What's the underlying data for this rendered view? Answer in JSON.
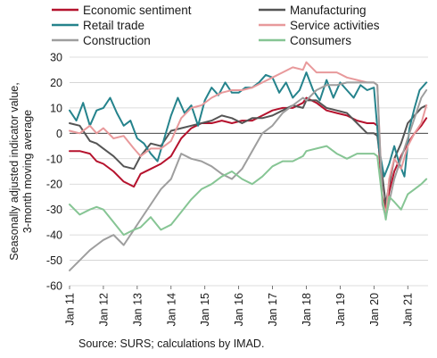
{
  "chart_data": {
    "type": "line",
    "title": "",
    "xlabel": "",
    "ylabel": "Seasonally adjusted indicator value, 3-month moving average",
    "ylabel_lines": [
      "Seasonally adjusted indicator value,",
      "3-month moving average"
    ],
    "ylim": [
      -60,
      30
    ],
    "yticks": [
      -60,
      -50,
      -40,
      -30,
      -20,
      -10,
      0,
      10,
      20,
      30
    ],
    "xlim": [
      2011.0,
      2021.6
    ],
    "xticks": [
      {
        "x": 2011,
        "label": "Jan 11"
      },
      {
        "x": 2012,
        "label": "Jan 12"
      },
      {
        "x": 2013,
        "label": "Jan 13"
      },
      {
        "x": 2014,
        "label": "Jan 14"
      },
      {
        "x": 2015,
        "label": "Jan 15"
      },
      {
        "x": 2016,
        "label": "Jan 16"
      },
      {
        "x": 2017,
        "label": "Jan 17"
      },
      {
        "x": 2018,
        "label": "Jan 18"
      },
      {
        "x": 2019,
        "label": "Jan 19"
      },
      {
        "x": 2020,
        "label": "Jan 20"
      },
      {
        "x": 2021,
        "label": "Jan 21"
      }
    ],
    "grid": "horizontal",
    "legend_position": "top",
    "series": [
      {
        "name": "Economic sentiment",
        "color": "#b5122d",
        "x": [
          2011.0,
          2011.3,
          2011.6,
          2011.8,
          2012.0,
          2012.3,
          2012.6,
          2012.9,
          2013.1,
          2013.4,
          2013.7,
          2014.0,
          2014.3,
          2014.6,
          2014.9,
          2015.2,
          2015.5,
          2015.8,
          2016.1,
          2016.4,
          2016.7,
          2017.0,
          2017.3,
          2017.6,
          2017.9,
          2018.0,
          2018.3,
          2018.6,
          2018.9,
          2019.2,
          2019.5,
          2019.8,
          2020.0,
          2020.1,
          2020.25,
          2020.35,
          2020.45,
          2020.6,
          2020.8,
          2021.0,
          2021.2,
          2021.4,
          2021.55
        ],
        "y": [
          -7,
          -7,
          -8,
          -11,
          -12,
          -15,
          -19,
          -21,
          -16,
          -14,
          -12,
          -9,
          -2,
          2,
          4,
          4,
          5,
          4,
          5,
          5,
          7,
          9,
          10,
          10,
          12,
          14,
          12,
          9,
          8,
          7,
          5,
          4,
          4,
          3,
          -25,
          -30,
          -23,
          -15,
          -9,
          -4,
          0,
          3,
          6
        ]
      },
      {
        "name": "Manufacturing",
        "color": "#555555",
        "x": [
          2011.0,
          2011.3,
          2011.6,
          2011.8,
          2012.0,
          2012.3,
          2012.6,
          2012.9,
          2013.1,
          2013.4,
          2013.7,
          2014.0,
          2014.3,
          2014.6,
          2014.9,
          2015.2,
          2015.5,
          2015.8,
          2016.1,
          2016.4,
          2016.7,
          2017.0,
          2017.3,
          2017.6,
          2017.9,
          2018.0,
          2018.3,
          2018.6,
          2018.9,
          2019.2,
          2019.5,
          2019.8,
          2020.0,
          2020.1,
          2020.25,
          2020.35,
          2020.45,
          2020.6,
          2020.8,
          2021.0,
          2021.2,
          2021.4,
          2021.55
        ],
        "y": [
          4,
          3,
          -3,
          -4,
          -6,
          -9,
          -13,
          -14,
          -9,
          -4,
          -5,
          1,
          2,
          3,
          4,
          5,
          7,
          6,
          4,
          6,
          6,
          7,
          9,
          11,
          10,
          13,
          13,
          10,
          9,
          8,
          4,
          0,
          0,
          -1,
          -17,
          -28,
          -20,
          -10,
          -4,
          4,
          7,
          10,
          11
        ]
      },
      {
        "name": "Retail trade",
        "color": "#25838c",
        "x": [
          2011.0,
          2011.2,
          2011.4,
          2011.6,
          2011.8,
          2012.0,
          2012.2,
          2012.4,
          2012.6,
          2012.8,
          2013.0,
          2013.2,
          2013.4,
          2013.6,
          2013.8,
          2014.0,
          2014.2,
          2014.4,
          2014.6,
          2014.8,
          2015.0,
          2015.2,
          2015.4,
          2015.6,
          2015.8,
          2016.0,
          2016.2,
          2016.4,
          2016.6,
          2016.8,
          2017.0,
          2017.2,
          2017.4,
          2017.6,
          2017.8,
          2018.0,
          2018.2,
          2018.4,
          2018.6,
          2018.8,
          2019.0,
          2019.2,
          2019.4,
          2019.6,
          2019.8,
          2020.0,
          2020.15,
          2020.3,
          2020.45,
          2020.6,
          2020.75,
          2020.9,
          2021.05,
          2021.2,
          2021.35,
          2021.55
        ],
        "y": [
          9,
          5,
          12,
          3,
          9,
          10,
          14,
          8,
          3,
          5,
          -2,
          -4,
          -8,
          -11,
          -2,
          7,
          14,
          8,
          11,
          3,
          13,
          18,
          15,
          20,
          16,
          16,
          18,
          18,
          20,
          23,
          22,
          16,
          20,
          14,
          17,
          24,
          17,
          13,
          21,
          14,
          20,
          17,
          14,
          19,
          17,
          18,
          -6,
          -17,
          -12,
          -5,
          -12,
          -17,
          2,
          10,
          17,
          20
        ]
      },
      {
        "name": "Service activities",
        "color": "#e8999b",
        "x": [
          2011.0,
          2011.3,
          2011.6,
          2011.8,
          2012.0,
          2012.3,
          2012.6,
          2012.9,
          2013.1,
          2013.4,
          2013.7,
          2014.0,
          2014.3,
          2014.6,
          2014.9,
          2015.2,
          2015.5,
          2015.8,
          2016.1,
          2016.4,
          2016.7,
          2017.0,
          2017.3,
          2017.6,
          2017.9,
          2018.0,
          2018.3,
          2018.6,
          2018.9,
          2019.2,
          2019.5,
          2019.8,
          2020.0,
          2020.1,
          2020.25,
          2020.35,
          2020.45,
          2020.6,
          2020.8,
          2021.0,
          2021.2,
          2021.4,
          2021.55
        ],
        "y": [
          1,
          0,
          3,
          0,
          2,
          -2,
          -1,
          -6,
          -9,
          -6,
          -6,
          -3,
          6,
          10,
          11,
          14,
          16,
          17,
          17,
          18,
          20,
          22,
          24,
          26,
          25,
          28,
          24,
          24,
          24,
          22,
          21,
          20,
          20,
          19,
          -26,
          -32,
          -18,
          -10,
          -14,
          -5,
          0,
          4,
          11
        ]
      },
      {
        "name": "Construction",
        "color": "#9e9e9e",
        "x": [
          2011.0,
          2011.3,
          2011.6,
          2011.8,
          2012.0,
          2012.3,
          2012.6,
          2012.9,
          2013.1,
          2013.4,
          2013.7,
          2014.0,
          2014.3,
          2014.6,
          2014.9,
          2015.2,
          2015.5,
          2015.8,
          2016.1,
          2016.4,
          2016.7,
          2017.0,
          2017.3,
          2017.6,
          2017.9,
          2018.0,
          2018.3,
          2018.6,
          2018.9,
          2019.2,
          2019.5,
          2019.8,
          2020.0,
          2020.1,
          2020.25,
          2020.35,
          2020.45,
          2020.6,
          2020.8,
          2021.0,
          2021.2,
          2021.4,
          2021.55
        ],
        "y": [
          -54,
          -50,
          -46,
          -44,
          -42,
          -40,
          -44,
          -38,
          -34,
          -28,
          -22,
          -18,
          -8,
          -10,
          -11,
          -13,
          -16,
          -18,
          -14,
          -7,
          0,
          3,
          8,
          11,
          14,
          13,
          17,
          19,
          19,
          20,
          20,
          20,
          20,
          19,
          -28,
          -33,
          -27,
          -18,
          -10,
          -2,
          6,
          14,
          17
        ]
      },
      {
        "name": "Consumers",
        "color": "#86c594",
        "x": [
          2011.0,
          2011.3,
          2011.6,
          2011.8,
          2012.0,
          2012.3,
          2012.6,
          2012.9,
          2013.1,
          2013.4,
          2013.7,
          2014.0,
          2014.3,
          2014.6,
          2014.9,
          2015.2,
          2015.5,
          2015.8,
          2016.1,
          2016.4,
          2016.7,
          2017.0,
          2017.3,
          2017.6,
          2017.9,
          2018.0,
          2018.3,
          2018.6,
          2018.9,
          2019.2,
          2019.5,
          2019.8,
          2020.0,
          2020.1,
          2020.25,
          2020.35,
          2020.45,
          2020.6,
          2020.8,
          2021.0,
          2021.2,
          2021.4,
          2021.55
        ],
        "y": [
          -28,
          -32,
          -30,
          -29,
          -30,
          -35,
          -40,
          -38,
          -37,
          -33,
          -38,
          -36,
          -31,
          -26,
          -22,
          -20,
          -17,
          -15,
          -18,
          -20,
          -17,
          -13,
          -11,
          -11,
          -9,
          -7,
          -6,
          -5,
          -8,
          -10,
          -8,
          -8,
          -8,
          -9,
          -26,
          -34,
          -25,
          -27,
          -30,
          -24,
          -22,
          -20,
          -18
        ]
      }
    ]
  },
  "source": "Source: SURS; calculations by IMAD."
}
